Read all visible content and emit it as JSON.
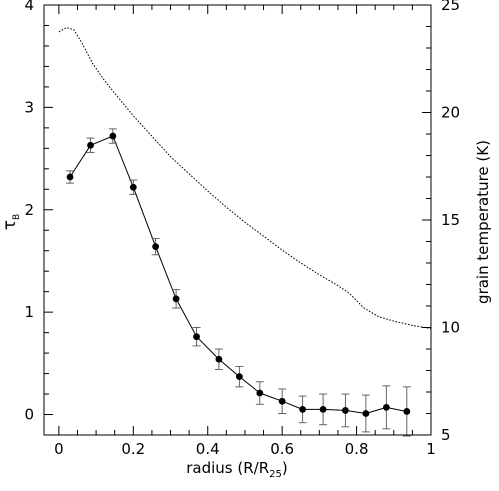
{
  "chart_data": {
    "type": "line",
    "x_axis": {
      "label_main": "radius (R/R",
      "label_sub": "25",
      "label_close": ")",
      "min": -0.04,
      "max": 1.0,
      "ticks": [
        0,
        0.2,
        0.4,
        0.6,
        0.8,
        1
      ],
      "tick_labels": [
        "0",
        "0.2",
        "0.4",
        "0.6",
        "0.8",
        "1"
      ]
    },
    "y_left": {
      "label_main": "τ",
      "label_sub": "B",
      "min": -0.2,
      "max": 4.0,
      "ticks": [
        0,
        1,
        2,
        3,
        4
      ],
      "tick_labels": [
        "0",
        "1",
        "2",
        "3",
        "4"
      ]
    },
    "y_right": {
      "label": "grain temperature (K)",
      "min": 5,
      "max": 25,
      "ticks": [
        5,
        10,
        15,
        20,
        25
      ],
      "tick_labels": [
        "5",
        "10",
        "15",
        "20",
        "25"
      ]
    },
    "series": [
      {
        "axis": "left",
        "style": "solid-with-markers-and-errorbars",
        "points": [
          {
            "x": 0.03,
            "y": 2.32,
            "err": 0.06
          },
          {
            "x": 0.085,
            "y": 2.63,
            "err": 0.07
          },
          {
            "x": 0.145,
            "y": 2.72,
            "err": 0.07
          },
          {
            "x": 0.2,
            "y": 2.22,
            "err": 0.07
          },
          {
            "x": 0.26,
            "y": 1.64,
            "err": 0.08
          },
          {
            "x": 0.315,
            "y": 1.13,
            "err": 0.09
          },
          {
            "x": 0.37,
            "y": 0.76,
            "err": 0.09
          },
          {
            "x": 0.43,
            "y": 0.54,
            "err": 0.1
          },
          {
            "x": 0.485,
            "y": 0.37,
            "err": 0.1
          },
          {
            "x": 0.54,
            "y": 0.21,
            "err": 0.11
          },
          {
            "x": 0.6,
            "y": 0.13,
            "err": 0.12
          },
          {
            "x": 0.655,
            "y": 0.05,
            "err": 0.13
          },
          {
            "x": 0.71,
            "y": 0.05,
            "err": 0.15
          },
          {
            "x": 0.77,
            "y": 0.04,
            "err": 0.16
          },
          {
            "x": 0.825,
            "y": 0.01,
            "err": 0.18
          },
          {
            "x": 0.88,
            "y": 0.07,
            "err": 0.21
          },
          {
            "x": 0.935,
            "y": 0.03,
            "err": 0.24
          }
        ]
      },
      {
        "axis": "right",
        "style": "dotted",
        "points": [
          {
            "x": 0.0,
            "y": 23.75
          },
          {
            "x": 0.02,
            "y": 23.95
          },
          {
            "x": 0.04,
            "y": 23.85
          },
          {
            "x": 0.06,
            "y": 23.3
          },
          {
            "x": 0.09,
            "y": 22.3
          },
          {
            "x": 0.12,
            "y": 21.55
          },
          {
            "x": 0.15,
            "y": 20.9
          },
          {
            "x": 0.2,
            "y": 19.85
          },
          {
            "x": 0.25,
            "y": 18.9
          },
          {
            "x": 0.3,
            "y": 17.95
          },
          {
            "x": 0.35,
            "y": 17.15
          },
          {
            "x": 0.4,
            "y": 16.35
          },
          {
            "x": 0.45,
            "y": 15.6
          },
          {
            "x": 0.5,
            "y": 14.9
          },
          {
            "x": 0.55,
            "y": 14.25
          },
          {
            "x": 0.6,
            "y": 13.6
          },
          {
            "x": 0.65,
            "y": 13.0
          },
          {
            "x": 0.7,
            "y": 12.45
          },
          {
            "x": 0.75,
            "y": 11.95
          },
          {
            "x": 0.78,
            "y": 11.6
          },
          {
            "x": 0.82,
            "y": 10.9
          },
          {
            "x": 0.86,
            "y": 10.5
          },
          {
            "x": 0.9,
            "y": 10.3
          },
          {
            "x": 0.95,
            "y": 10.1
          },
          {
            "x": 1.0,
            "y": 9.95
          }
        ]
      }
    ],
    "grid": false
  }
}
